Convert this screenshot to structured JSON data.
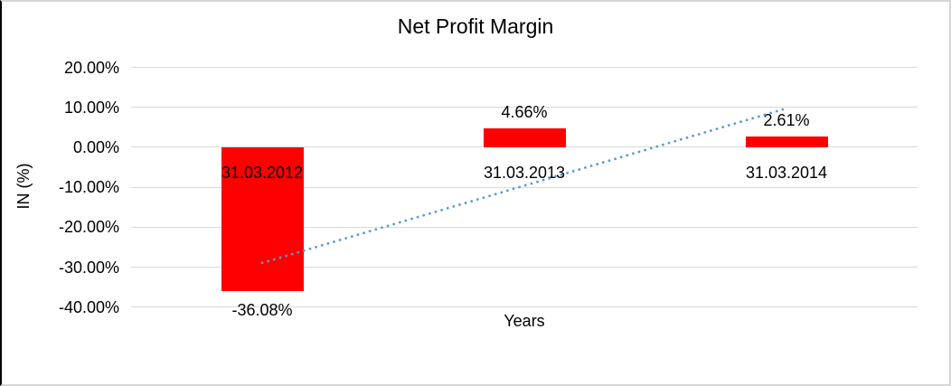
{
  "chart_data": {
    "type": "bar",
    "title": "Net Profit Margin",
    "categories": [
      "31.03.2012",
      "31.03.2013",
      "31.03.2014"
    ],
    "values": [
      -36.08,
      4.66,
      2.61
    ],
    "value_labels": [
      "-36.08%",
      "4.66%",
      "2.61%"
    ],
    "xlabel": "Years",
    "ylabel": "IN (%)",
    "ylim": [
      -40,
      20
    ],
    "ytick_values": [
      20,
      10,
      0,
      -10,
      -20,
      -30,
      -40
    ],
    "ytick_labels": [
      "20.00%",
      "10.00%",
      "0.00%",
      "-10.00%",
      "-20.00%",
      "-30.00%",
      "-40.00%"
    ],
    "grid": true,
    "legend": false,
    "bar_color": "#ff0000",
    "gridline_color": "#d9d9d9",
    "text_color": "#000000",
    "trendline": {
      "type": "linear",
      "style": "dotted",
      "color": "#5b9bd5",
      "start": {
        "category_index": 0,
        "value": -28.95
      },
      "end": {
        "category_index": 2,
        "value": 9.74
      }
    }
  }
}
